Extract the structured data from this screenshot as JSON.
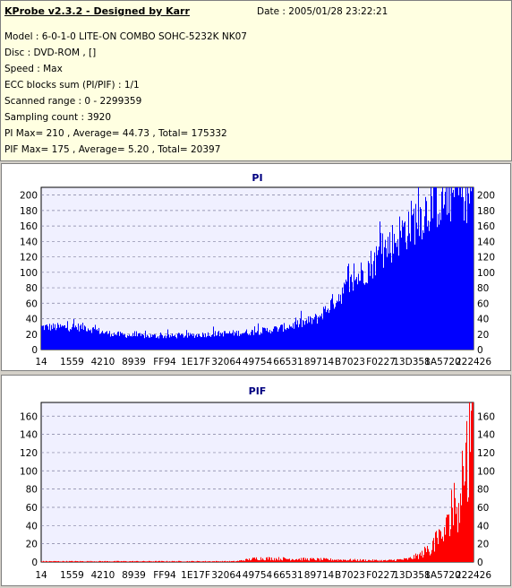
{
  "info": {
    "title": "KProbe v2.3.2 - Designed by Karr",
    "date": "Date : 2005/01/28 23:22:21",
    "lines": [
      "Model : 6-0-1-0 LITE-ON COMBO SOHC-5232K NK07",
      "Disc : DVD-ROM ,  []",
      "Speed : Max",
      "ECC blocks sum (PI/PIF) : 1/1",
      "Scanned range : 0 - 2299359",
      "Sampling count : 3920",
      "PI Max= 210 , Average= 44.73 , Total= 175332",
      "PIF Max= 175 , Average= 5.20 , Total= 20397"
    ]
  },
  "chart_data": [
    {
      "type": "bar",
      "title": "PI",
      "color": "#0000ff",
      "xlabel": "",
      "ylabel": "",
      "ylim": [
        0,
        210
      ],
      "yticks": [
        0,
        20,
        40,
        60,
        80,
        100,
        120,
        140,
        160,
        180,
        200
      ],
      "xticks": [
        "14",
        "1559",
        "4210",
        "8939",
        "FF94",
        "1E17F",
        "32064",
        "49754",
        "66531",
        "89714",
        "B7023",
        "F0227",
        "13D358",
        "1A5720",
        "222426"
      ],
      "grid": true,
      "series": [
        {
          "x": [
            0.0,
            0.05,
            0.1,
            0.15,
            0.2,
            0.25,
            0.3,
            0.35,
            0.4,
            0.45,
            0.5,
            0.55,
            0.58,
            0.61,
            0.64,
            0.67,
            0.7,
            0.73,
            0.76,
            0.79,
            0.82,
            0.85,
            0.88,
            0.91,
            0.94,
            0.97,
            1.0
          ],
          "values": [
            30,
            30,
            30,
            22,
            19,
            18,
            18,
            19,
            21,
            22,
            24,
            28,
            32,
            36,
            42,
            60,
            78,
            95,
            112,
            130,
            148,
            165,
            180,
            196,
            205,
            208,
            210
          ]
        }
      ]
    },
    {
      "type": "bar",
      "title": "PIF",
      "color": "#ff0000",
      "xlabel": "",
      "ylabel": "",
      "ylim": [
        0,
        175
      ],
      "yticks": [
        0,
        20,
        40,
        60,
        80,
        100,
        120,
        140,
        160
      ],
      "xticks": [
        "14",
        "1559",
        "4210",
        "8939",
        "FF94",
        "1E17F",
        "32064",
        "49754",
        "66531",
        "89714",
        "B7023",
        "F0227",
        "13D358",
        "1A5720",
        "222426"
      ],
      "grid": true,
      "series": [
        {
          "x": [
            0.0,
            0.45,
            0.5,
            0.8,
            0.85,
            0.88,
            0.9,
            0.92,
            0.94,
            0.96,
            0.98,
            1.0
          ],
          "values": [
            1,
            1,
            5,
            2,
            4,
            10,
            20,
            30,
            45,
            80,
            130,
            175
          ]
        }
      ]
    }
  ]
}
